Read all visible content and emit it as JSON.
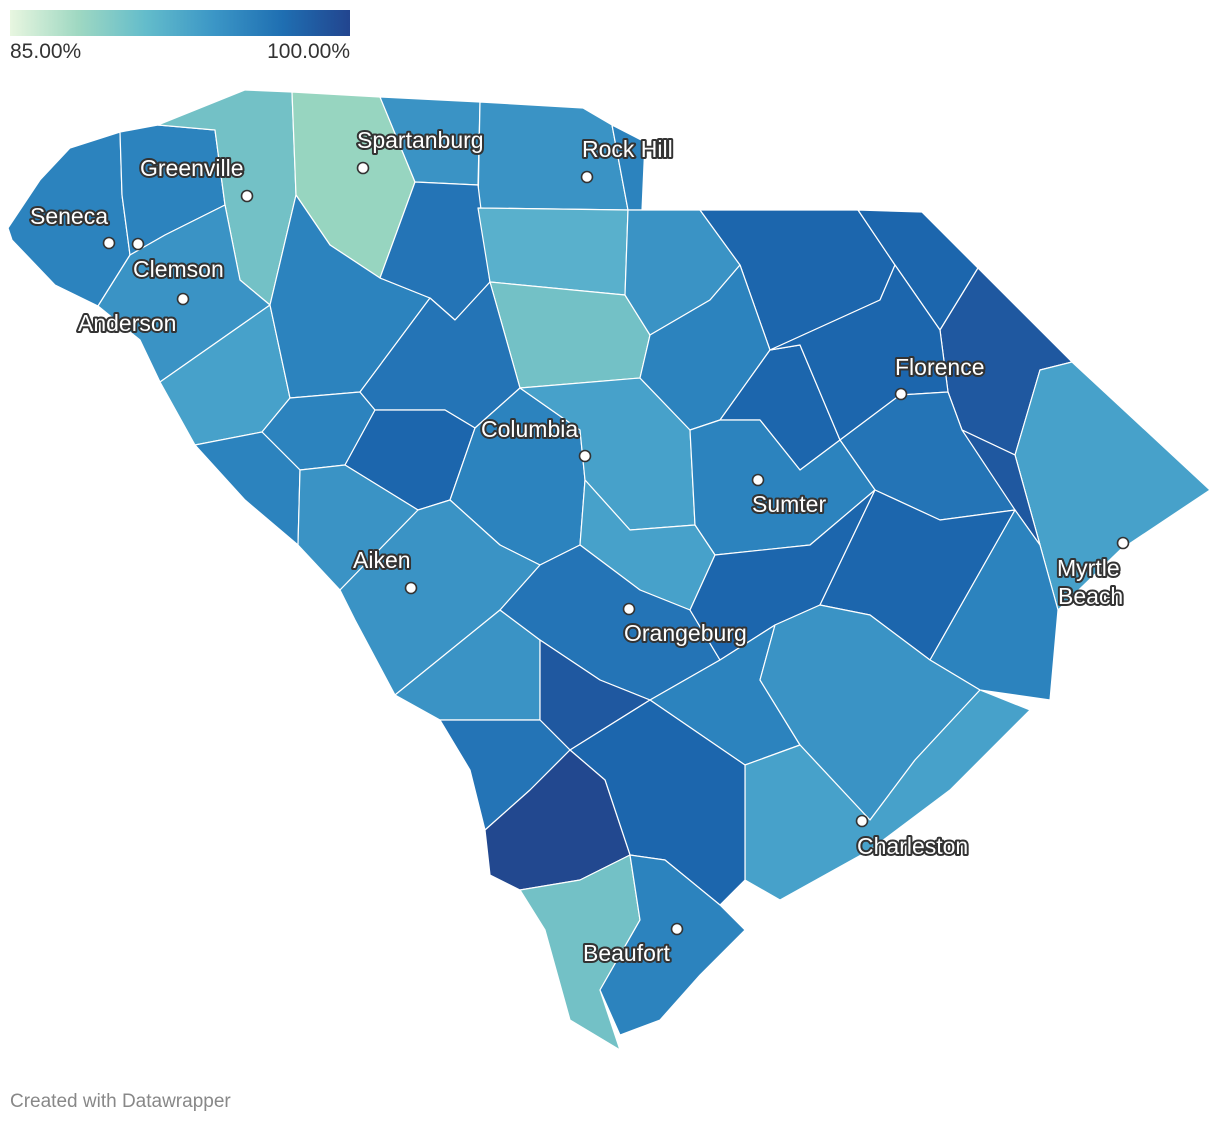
{
  "legend": {
    "min_label": "85.00%",
    "max_label": "100.00%",
    "colors": [
      "#e8f6e0",
      "#9fd8c2",
      "#63bccb",
      "#3b96c6",
      "#1f6fb2",
      "#22458f"
    ]
  },
  "palette": {
    "c1": "#97d5c0",
    "c2": "#73c1c6",
    "c3": "#59b0cc",
    "c4": "#47a1ca",
    "c5": "#3a93c5",
    "c6": "#2c83be",
    "c7": "#2474b6",
    "c8": "#1c66ad",
    "c9": "#1f58a0",
    "c10": "#22488f"
  },
  "cities": [
    {
      "name": "Spartanburg",
      "id": "spartanburg"
    },
    {
      "name": "Rock Hill",
      "id": "rock-hill"
    },
    {
      "name": "Greenville",
      "id": "greenville"
    },
    {
      "name": "Seneca",
      "id": "seneca"
    },
    {
      "name": "Clemson",
      "id": "clemson"
    },
    {
      "name": "Anderson",
      "id": "anderson"
    },
    {
      "name": "Florence",
      "id": "florence"
    },
    {
      "name": "Columbia",
      "id": "columbia"
    },
    {
      "name": "Sumter",
      "id": "sumter"
    },
    {
      "name": "Aiken",
      "id": "aiken"
    },
    {
      "name": "Orangeburg",
      "id": "orangeburg"
    },
    {
      "name": "Myrtle",
      "id": "myrtle-1"
    },
    {
      "name": "Beach",
      "id": "myrtle-2"
    },
    {
      "name": "Charleston",
      "id": "charleston"
    },
    {
      "name": "Beaufort",
      "id": "beaufort"
    }
  ],
  "footer": "Created with Datawrapper"
}
